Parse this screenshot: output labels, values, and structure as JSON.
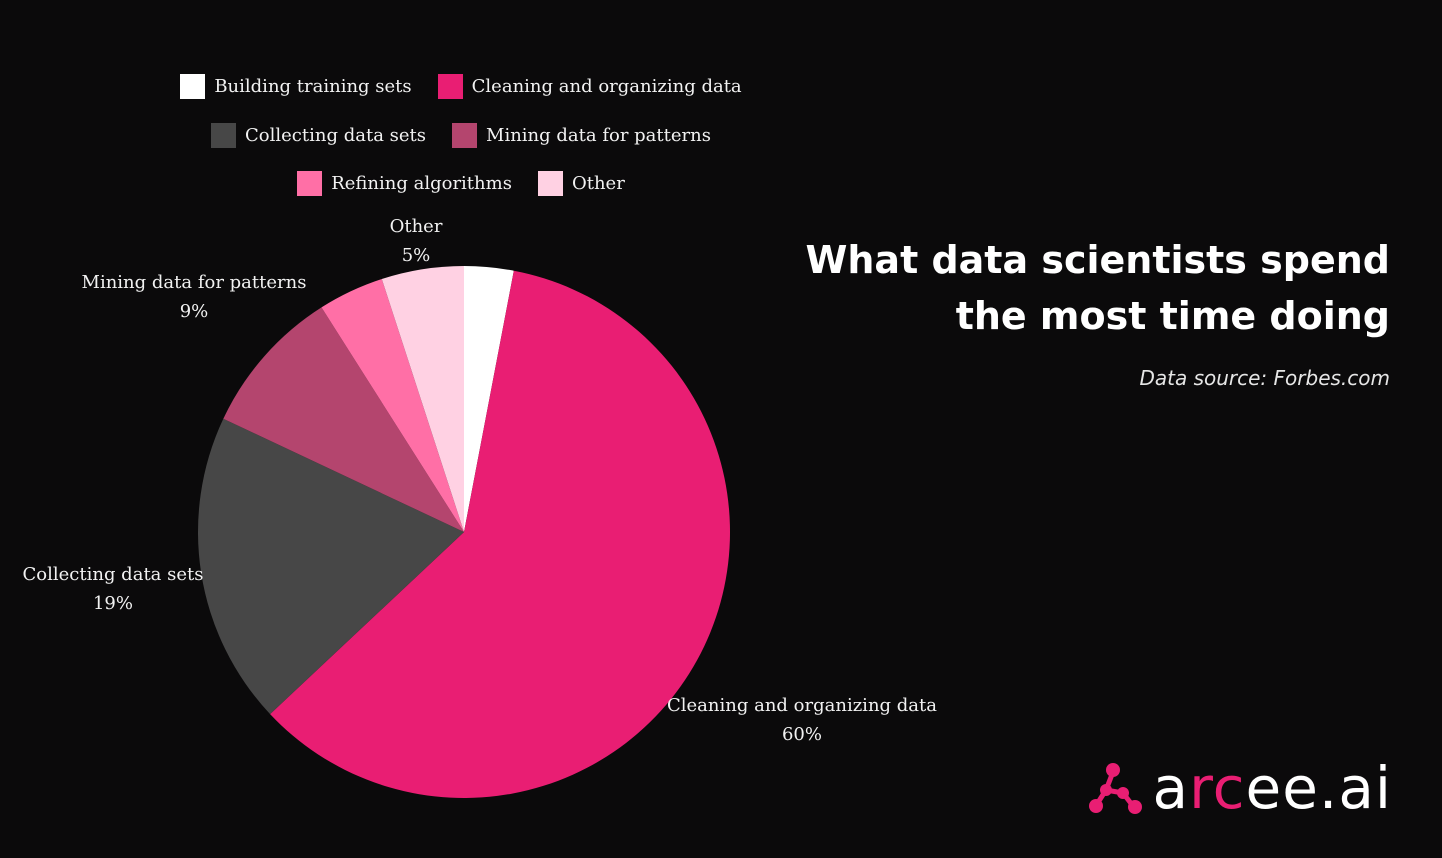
{
  "title_line1": "What data scientists spend",
  "title_line2": "the most time doing",
  "source": "Data source: Forbes.com",
  "logo": {
    "pre": "a",
    "accent": "rc",
    "post": "ee.ai"
  },
  "chart_data": {
    "type": "pie",
    "legend_position": "top",
    "slices": [
      {
        "label": "Building training sets",
        "value": 3,
        "value_label": "",
        "color": "#ffffff"
      },
      {
        "label": "Cleaning and organizing data",
        "value": 60,
        "value_label": "60%",
        "color": "#e91e73"
      },
      {
        "label": "Collecting data sets",
        "value": 19,
        "value_label": "19%",
        "color": "#474747"
      },
      {
        "label": "Mining data for patterns",
        "value": 9,
        "value_label": "9%",
        "color": "#b4456e"
      },
      {
        "label": "Refining algorithms",
        "value": 4,
        "value_label": "",
        "color": "#ff6fa6"
      },
      {
        "label": "Other",
        "value": 5,
        "value_label": "5%",
        "color": "#ffd1e3"
      }
    ]
  }
}
